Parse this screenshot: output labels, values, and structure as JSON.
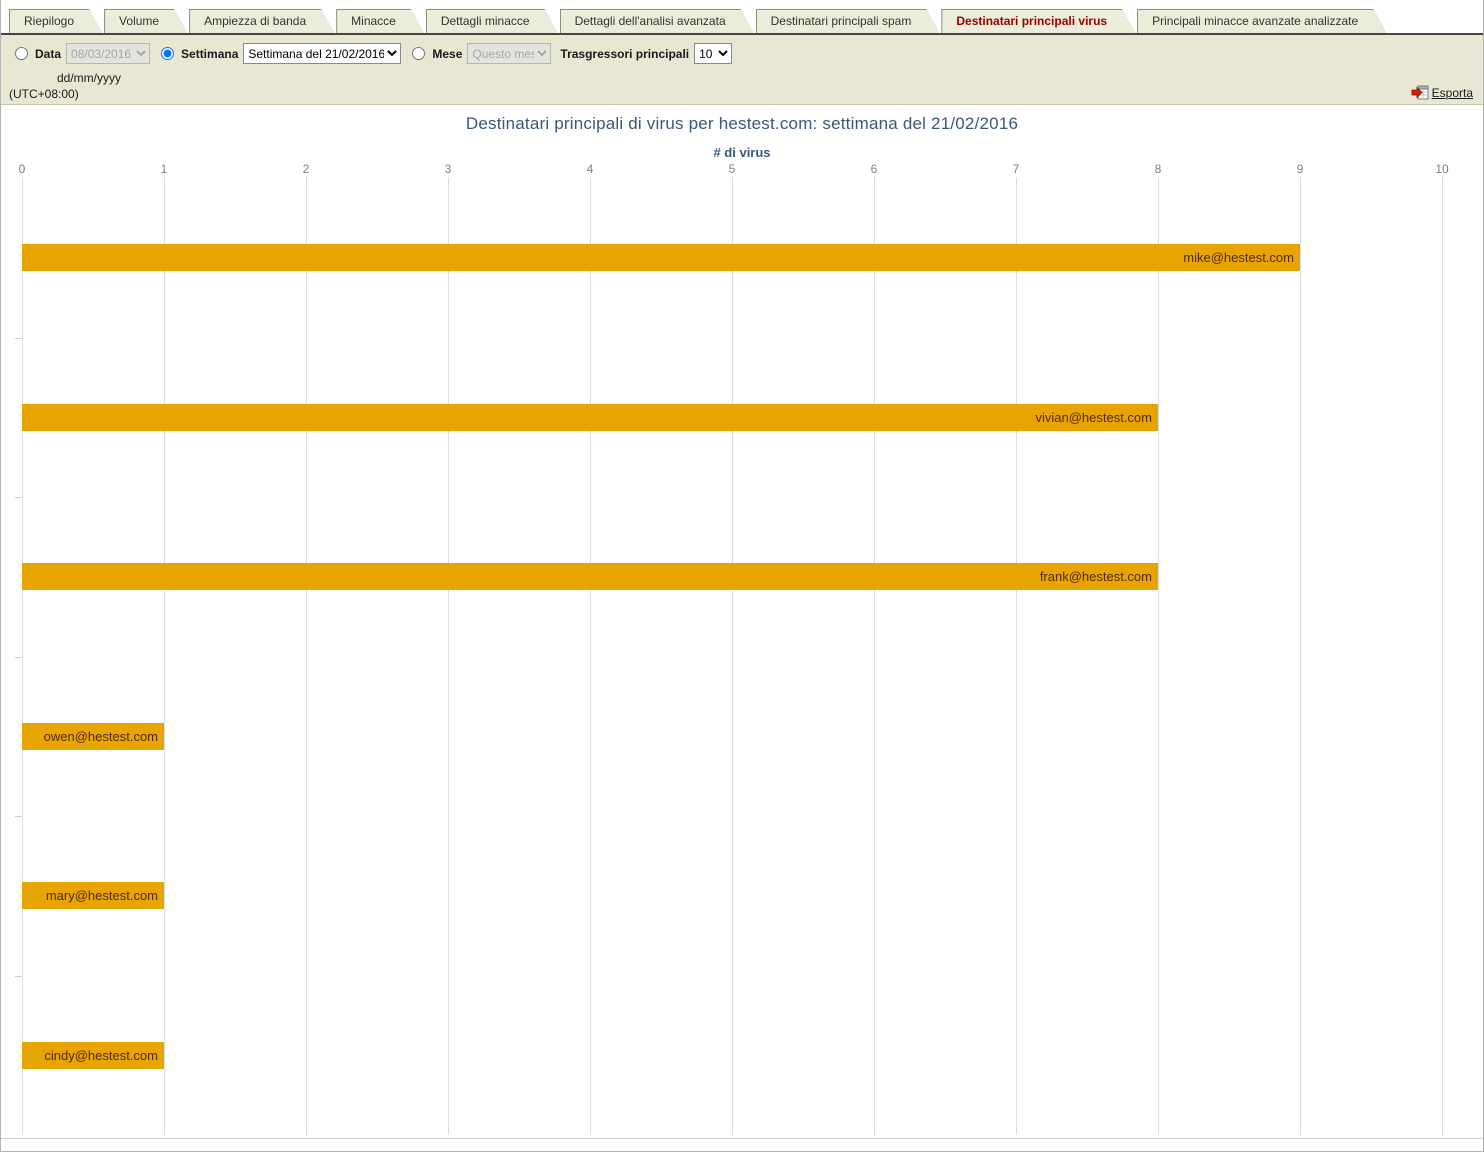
{
  "tabs": {
    "active_color": "#990000",
    "items": [
      {
        "label": "Riepilogo",
        "active": false
      },
      {
        "label": "Volume",
        "active": false
      },
      {
        "label": "Ampiezza di banda",
        "active": false
      },
      {
        "label": "Minacce",
        "active": false
      },
      {
        "label": "Dettagli minacce",
        "active": false
      },
      {
        "label": "Dettagli dell'analisi avanzata",
        "active": false
      },
      {
        "label": "Destinatari principali spam",
        "active": false
      },
      {
        "label": "Destinatari principali virus",
        "active": true
      },
      {
        "label": "Principali minacce avanzate analizzate",
        "active": false
      }
    ]
  },
  "filters": {
    "date_radio_label": "Data",
    "date_value": "08/03/2016",
    "date_format_hint": "dd/mm/yyyy",
    "week_radio_label": "Settimana",
    "week_value": "Settimana del 21/02/2016",
    "month_radio_label": "Mese",
    "month_value": "Questo mese",
    "top_offenders_label": "Trasgressori principali",
    "top_offenders_value": "10",
    "timezone": "(UTC+08:00)",
    "export_label": "Esporta",
    "selected_period": "week"
  },
  "chart_data": {
    "type": "bar",
    "orientation": "horizontal",
    "title": "Destinatari principali di virus per hestest.com: settimana del 21/02/2016",
    "xlabel": "# di virus",
    "categories": [
      "mike@hestest.com",
      "vivian@hestest.com",
      "frank@hestest.com",
      "owen@hestest.com",
      "mary@hestest.com",
      "cindy@hestest.com"
    ],
    "values": [
      9,
      8,
      8,
      1,
      1,
      1
    ],
    "xlim": [
      0,
      10
    ],
    "xticks": [
      0,
      1,
      2,
      3,
      4,
      5,
      6,
      7,
      8,
      9,
      10
    ],
    "bar_color": "#E8A400",
    "label_color": "#532a00",
    "title_color": "#3A587E",
    "grid": true,
    "legend": false
  }
}
